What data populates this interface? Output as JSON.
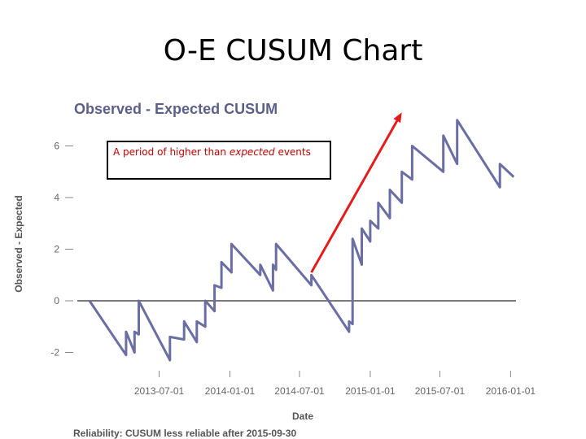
{
  "slide": {
    "title": "O-E CUSUM Chart"
  },
  "annotation": {
    "text_before": "A period of higher than ",
    "text_em": "expected",
    "text_after": " events"
  },
  "colors": {
    "series": "#6a6ea3",
    "arrow": "#e51a1a",
    "zero_line": "#7a7a7a",
    "title": "#5b5f8a"
  },
  "chart_data": {
    "type": "line",
    "title": "Observed - Expected CUSUM",
    "xlabel": "Date",
    "ylabel": "Observed - Expected",
    "footnote": "Reliability: CUSUM less reliable after 2015-09-30",
    "x_ticks": [
      "2013-07-01",
      "2014-01-01",
      "2014-07-01",
      "2015-01-01",
      "2015-07-01",
      "2016-01-01"
    ],
    "y_ticks": [
      -2,
      0,
      2,
      4,
      6
    ],
    "xlim": [
      "2013-01-01",
      "2016-01-15"
    ],
    "ylim": [
      -2.5,
      6.5
    ],
    "reference_line": 0,
    "series": [
      {
        "points": [
          [
            "2013-01-01",
            0
          ],
          [
            "2013-04-06",
            -2.1
          ],
          [
            "2013-04-06",
            -1.2
          ],
          [
            "2013-04-28",
            -2.0
          ],
          [
            "2013-04-28",
            -1.2
          ],
          [
            "2013-05-09",
            -1.3
          ],
          [
            "2013-05-09",
            0.0
          ],
          [
            "2013-07-29",
            -2.3
          ],
          [
            "2013-07-29",
            -1.4
          ],
          [
            "2013-09-04",
            -1.5
          ],
          [
            "2013-09-04",
            -0.8
          ],
          [
            "2013-10-07",
            -1.6
          ],
          [
            "2013-10-07",
            -0.8
          ],
          [
            "2013-10-29",
            -1.0
          ],
          [
            "2013-10-29",
            0.0
          ],
          [
            "2013-11-22",
            -0.4
          ],
          [
            "2013-11-22",
            0.6
          ],
          [
            "2013-12-10",
            0.5
          ],
          [
            "2013-12-10",
            1.5
          ],
          [
            "2014-01-05",
            1.1
          ],
          [
            "2014-01-05",
            2.2
          ],
          [
            "2014-03-21",
            1.0
          ],
          [
            "2014-03-21",
            1.4
          ],
          [
            "2014-04-23",
            0.4
          ],
          [
            "2014-04-23",
            1.4
          ],
          [
            "2014-05-01",
            1.2
          ],
          [
            "2014-05-01",
            2.2
          ],
          [
            "2014-08-01",
            0.6
          ],
          [
            "2014-08-01",
            1.0
          ],
          [
            "2014-11-07",
            -1.2
          ],
          [
            "2014-11-07",
            -0.8
          ],
          [
            "2014-11-16",
            -0.9
          ],
          [
            "2014-11-16",
            2.4
          ],
          [
            "2014-12-10",
            1.4
          ],
          [
            "2014-12-10",
            2.8
          ],
          [
            "2015-01-01",
            2.3
          ],
          [
            "2015-01-01",
            3.1
          ],
          [
            "2015-01-22",
            2.8
          ],
          [
            "2015-01-22",
            3.8
          ],
          [
            "2015-02-21",
            3.2
          ],
          [
            "2015-02-21",
            4.3
          ],
          [
            "2015-03-24",
            3.8
          ],
          [
            "2015-03-24",
            5.0
          ],
          [
            "2015-04-20",
            4.7
          ],
          [
            "2015-04-20",
            6.0
          ],
          [
            "2015-07-10",
            5.0
          ],
          [
            "2015-07-10",
            6.4
          ],
          [
            "2015-08-15",
            5.3
          ],
          [
            "2015-08-15",
            7.0
          ],
          [
            "2015-12-04",
            4.4
          ],
          [
            "2015-12-04",
            5.3
          ],
          [
            "2016-01-09",
            4.8
          ]
        ]
      }
    ],
    "arrow": {
      "from": [
        "2014-08-01",
        1.1
      ],
      "to": [
        "2015-03-24",
        7.3
      ]
    }
  }
}
